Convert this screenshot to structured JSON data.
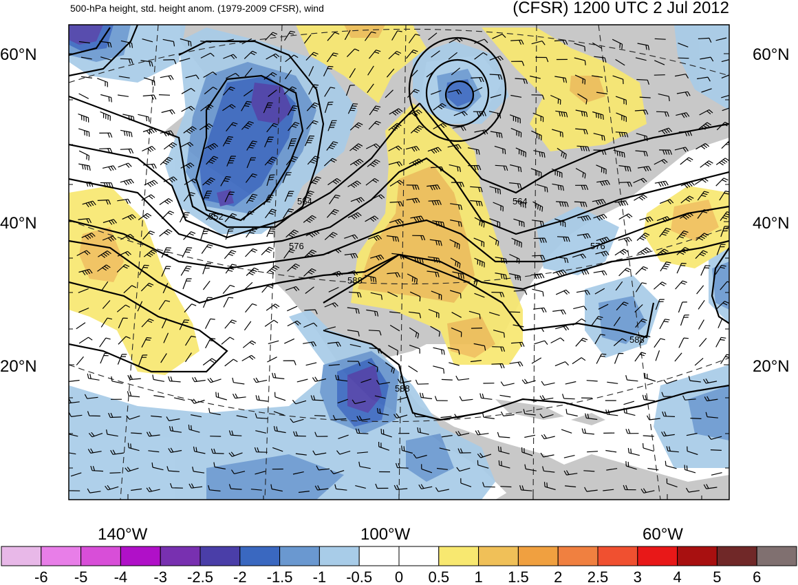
{
  "header": {
    "subtitle": "500-hPa height, std. height anom. (1979-2009 CFSR), wind",
    "title": "(CFSR) 1200 UTC 2 Jul 2012"
  },
  "axes": {
    "lat_labels": [
      {
        "text": "60°N"
      },
      {
        "text": "40°N"
      },
      {
        "text": "20°N"
      }
    ],
    "lon_labels": [
      {
        "text": "140°W"
      },
      {
        "text": "100°W"
      },
      {
        "text": "60°W"
      }
    ]
  },
  "contour_labels": [
    {
      "text": "552"
    },
    {
      "text": "564"
    },
    {
      "text": "564"
    },
    {
      "text": "576"
    },
    {
      "text": "576"
    },
    {
      "text": "588"
    },
    {
      "text": "588"
    },
    {
      "text": "588"
    }
  ],
  "colorbar": {
    "colors": [
      "#e8b8e8",
      "#e87ee8",
      "#d84ed8",
      "#b010c8",
      "#7830b0",
      "#4a3ea8",
      "#3a68c0",
      "#6a98d0",
      "#a8cce8",
      "#ffffff",
      "#ffffff",
      "#f8e870",
      "#f0c058",
      "#f0a040",
      "#f08040",
      "#f05030",
      "#e81818",
      "#a81010",
      "#702828",
      "#807070"
    ],
    "labels": [
      "-6",
      "-5",
      "-4",
      "-3",
      "-2.5",
      "-2",
      "-1.5",
      "-1",
      "-0.5",
      "0",
      "0.5",
      "1",
      "1.5",
      "2",
      "2.5",
      "3",
      "4",
      "5",
      "6"
    ]
  },
  "colors": {
    "land": "#c8c8c8",
    "ocean": "#ffffff"
  }
}
